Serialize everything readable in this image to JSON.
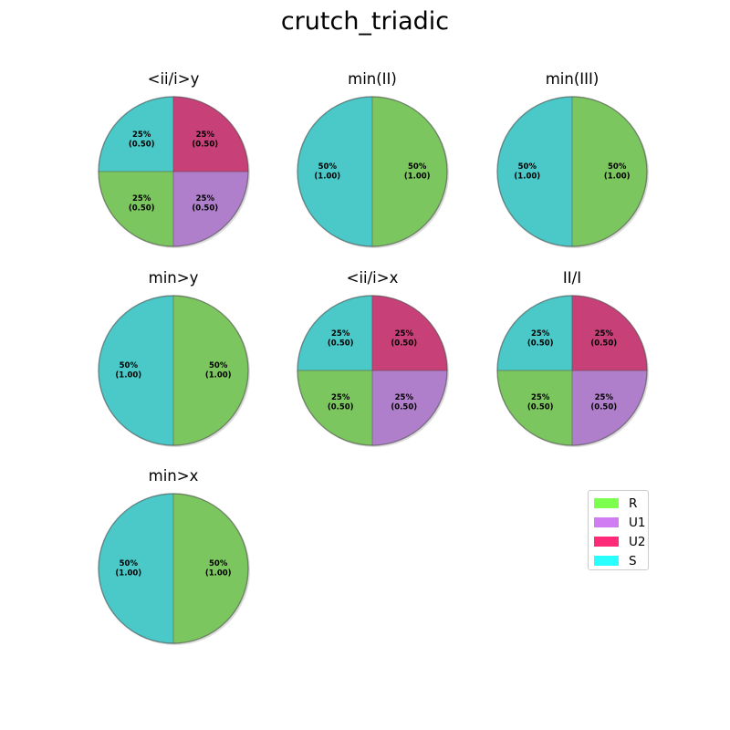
{
  "chart_data": {
    "type": "pie",
    "title": "crutch_triadic",
    "colors": {
      "R": "#7cc65f",
      "U1": "#b07fcb",
      "U2": "#c84078",
      "S": "#4bc8c8"
    },
    "legend": {
      "placement": "right",
      "entries": [
        {
          "label": "R",
          "color": "#7dff4f"
        },
        {
          "label": "U1",
          "color": "#d07cf2"
        },
        {
          "label": "U2",
          "color": "#ff2a78"
        },
        {
          "label": "S",
          "color": "#2affff"
        }
      ]
    },
    "pies": [
      {
        "title": "<ii/i>y",
        "slices": [
          {
            "category": "S",
            "value": 0.5,
            "label": "25%\n(0.50)"
          },
          {
            "category": "R",
            "value": 0.5,
            "label": "25%\n(0.50)"
          },
          {
            "category": "U1",
            "value": 0.5,
            "label": "25%\n(0.50)"
          },
          {
            "category": "U2",
            "value": 0.5,
            "label": "25%\n(0.50)"
          }
        ]
      },
      {
        "title": "min(II)",
        "slices": [
          {
            "category": "S",
            "value": 1.0,
            "label": "50%\n(1.00)"
          },
          {
            "category": "R",
            "value": 1.0,
            "label": "50%\n(1.00)"
          }
        ]
      },
      {
        "title": "min(III)",
        "slices": [
          {
            "category": "S",
            "value": 1.0,
            "label": "50%\n(1.00)"
          },
          {
            "category": "R",
            "value": 1.0,
            "label": "50%\n(1.00)"
          }
        ]
      },
      {
        "title": "min>y",
        "slices": [
          {
            "category": "S",
            "value": 1.0,
            "label": "50%\n(1.00)"
          },
          {
            "category": "R",
            "value": 1.0,
            "label": "50%\n(1.00)"
          }
        ]
      },
      {
        "title": "<ii/i>x",
        "slices": [
          {
            "category": "S",
            "value": 0.5,
            "label": "25%\n(0.50)"
          },
          {
            "category": "R",
            "value": 0.5,
            "label": "25%\n(0.50)"
          },
          {
            "category": "U1",
            "value": 0.5,
            "label": "25%\n(0.50)"
          },
          {
            "category": "U2",
            "value": 0.5,
            "label": "25%\n(0.50)"
          }
        ]
      },
      {
        "title": "II/I",
        "slices": [
          {
            "category": "S",
            "value": 0.5,
            "label": "25%\n(0.50)"
          },
          {
            "category": "R",
            "value": 0.5,
            "label": "25%\n(0.50)"
          },
          {
            "category": "U1",
            "value": 0.5,
            "label": "25%\n(0.50)"
          },
          {
            "category": "U2",
            "value": 0.5,
            "label": "25%\n(0.50)"
          }
        ]
      },
      {
        "title": "min>x",
        "slices": [
          {
            "category": "S",
            "value": 1.0,
            "label": "50%\n(1.00)"
          },
          {
            "category": "R",
            "value": 1.0,
            "label": "50%\n(1.00)"
          }
        ]
      }
    ]
  }
}
